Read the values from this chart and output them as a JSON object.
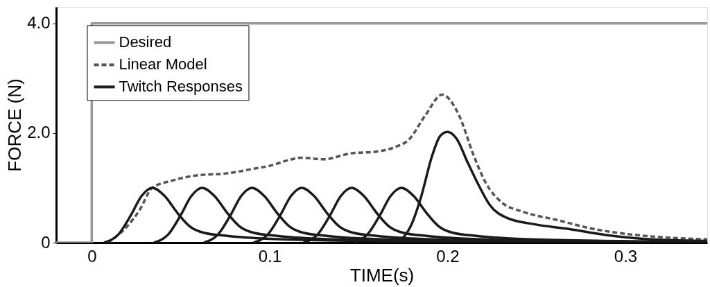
{
  "chart_data": {
    "type": "line",
    "xlabel": "TIME(s)",
    "ylabel": "FORCE (N)",
    "xlim": [
      -0.02,
      0.346
    ],
    "ylim": [
      0,
      4.3
    ],
    "xticks": [
      {
        "value": 0,
        "label": "0"
      },
      0.1,
      0.2,
      0.3
    ],
    "yticks": [
      {
        "value": 0,
        "label": "0"
      },
      {
        "value": 2,
        "label": "2.0"
      },
      {
        "value": 4,
        "label": "4.0"
      }
    ],
    "grid": false,
    "legend": "top left",
    "marker": "none",
    "series": [
      {
        "name": "Desired",
        "color": "#999999",
        "line_style": "solid",
        "x": [
          -0.02,
          0,
          0,
          0.346
        ],
        "values": [
          0,
          0,
          4.0,
          4.0
        ]
      },
      {
        "name": "Linear Model",
        "color": "#555555",
        "line_style": "dashed",
        "x": [
          0.009,
          0.02,
          0.027,
          0.034,
          0.045,
          0.06,
          0.075,
          0.093,
          0.1,
          0.11,
          0.118,
          0.13,
          0.146,
          0.16,
          0.171,
          0.178,
          0.1875,
          0.197,
          0.2065,
          0.2146,
          0.2215,
          0.231,
          0.2417,
          0.262,
          0.282,
          0.2955,
          0.32,
          0.346
        ],
        "values": [
          0,
          0.3,
          0.6,
          1.0,
          1.13,
          1.23,
          1.26,
          1.36,
          1.4,
          1.5,
          1.55,
          1.52,
          1.63,
          1.66,
          1.75,
          1.87,
          2.32,
          2.7,
          2.32,
          1.6,
          1.09,
          0.72,
          0.57,
          0.41,
          0.25,
          0.18,
          0.1,
          0.06
        ]
      },
      {
        "name": "Twitch Responses",
        "color": "#1a1a1a",
        "line_style": "solid",
        "x": [
          0.007,
          0.015,
          0.022,
          0.028,
          0.034,
          0.041,
          0.048,
          0.055,
          0.063,
          0.077,
          0.107,
          0.157,
          0.207
        ],
        "values": [
          0,
          0.15,
          0.5,
          0.85,
          1.0,
          0.85,
          0.55,
          0.3,
          0.18,
          0.12,
          0.06,
          0.03,
          0.01
        ]
      },
      {
        "color": "#1a1a1a",
        "line_style": "solid",
        "x": [
          0.035,
          0.043,
          0.05,
          0.056,
          0.062,
          0.069,
          0.076,
          0.083,
          0.091,
          0.105,
          0.135,
          0.185,
          0.235
        ],
        "values": [
          0,
          0.15,
          0.5,
          0.85,
          1.0,
          0.85,
          0.55,
          0.3,
          0.18,
          0.12,
          0.06,
          0.03,
          0.01
        ]
      },
      {
        "color": "#1a1a1a",
        "line_style": "solid",
        "x": [
          0.063,
          0.071,
          0.078,
          0.084,
          0.09,
          0.097,
          0.104,
          0.111,
          0.119,
          0.133,
          0.163,
          0.213,
          0.263
        ],
        "values": [
          0,
          0.15,
          0.5,
          0.85,
          1.0,
          0.85,
          0.55,
          0.3,
          0.18,
          0.12,
          0.06,
          0.03,
          0.01
        ]
      },
      {
        "color": "#1a1a1a",
        "line_style": "solid",
        "x": [
          0.091,
          0.099,
          0.106,
          0.112,
          0.118,
          0.125,
          0.132,
          0.139,
          0.147,
          0.161,
          0.191,
          0.241,
          0.291
        ],
        "values": [
          0,
          0.15,
          0.5,
          0.85,
          1.0,
          0.85,
          0.55,
          0.3,
          0.18,
          0.12,
          0.06,
          0.03,
          0.01
        ]
      },
      {
        "color": "#1a1a1a",
        "line_style": "solid",
        "x": [
          0.119,
          0.127,
          0.134,
          0.14,
          0.146,
          0.153,
          0.16,
          0.167,
          0.175,
          0.189,
          0.219,
          0.269,
          0.319
        ],
        "values": [
          0,
          0.15,
          0.5,
          0.85,
          1.0,
          0.85,
          0.55,
          0.3,
          0.18,
          0.12,
          0.06,
          0.03,
          0.01
        ]
      },
      {
        "color": "#1a1a1a",
        "line_style": "solid",
        "x": [
          0.147,
          0.155,
          0.162,
          0.168,
          0.174,
          0.181,
          0.188,
          0.195,
          0.203,
          0.217,
          0.247,
          0.297,
          0.346
        ],
        "values": [
          0,
          0.15,
          0.5,
          0.85,
          1.0,
          0.85,
          0.55,
          0.3,
          0.18,
          0.12,
          0.06,
          0.03,
          0.01
        ]
      },
      {
        "color": "#1a1a1a",
        "line_style": "solid",
        "x": [
          0.172,
          0.18,
          0.185,
          0.1915,
          0.196,
          0.2,
          0.205,
          0.2115,
          0.2175,
          0.2235,
          0.2335,
          0.248,
          0.268,
          0.289,
          0.31,
          0.346
        ],
        "values": [
          0,
          0.35,
          0.82,
          1.6,
          1.95,
          2.02,
          1.9,
          1.45,
          1.05,
          0.7,
          0.45,
          0.34,
          0.25,
          0.14,
          0.07,
          0.03
        ]
      }
    ]
  }
}
